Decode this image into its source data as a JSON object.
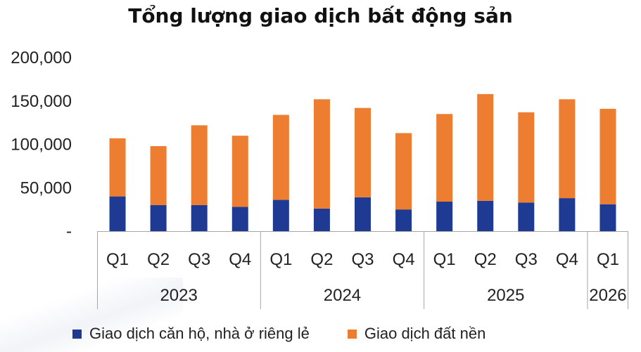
{
  "chart_data": {
    "type": "bar",
    "stacked": true,
    "title": "Tổng lượng giao dịch bất động sản",
    "categories": [
      "Q1",
      "Q2",
      "Q3",
      "Q4",
      "Q1",
      "Q2",
      "Q3",
      "Q4",
      "Q1",
      "Q2",
      "Q3",
      "Q4",
      "Q1"
    ],
    "groups": [
      {
        "label": "2023",
        "count": 4
      },
      {
        "label": "2024",
        "count": 4
      },
      {
        "label": "2025",
        "count": 4
      },
      {
        "label": "2026",
        "count": 1
      }
    ],
    "series": [
      {
        "name": "Giao dịch căn hộ, nhà ở riêng lẻ",
        "color": "#1f3a93",
        "values": [
          40000,
          30000,
          30000,
          28000,
          36000,
          26000,
          39000,
          25000,
          34000,
          35000,
          33000,
          38000,
          31000
        ]
      },
      {
        "name": "Giao dịch đất nền",
        "color": "#ed7d31",
        "values": [
          67000,
          68000,
          92000,
          82000,
          98000,
          126000,
          103000,
          88000,
          101000,
          123000,
          104000,
          114000,
          110000
        ]
      }
    ],
    "yticks": [
      "-",
      "50,000",
      "100,000",
      "150,000",
      "200,000"
    ],
    "ylim": [
      0,
      200000
    ],
    "legend_position": "bottom",
    "grid": false
  }
}
